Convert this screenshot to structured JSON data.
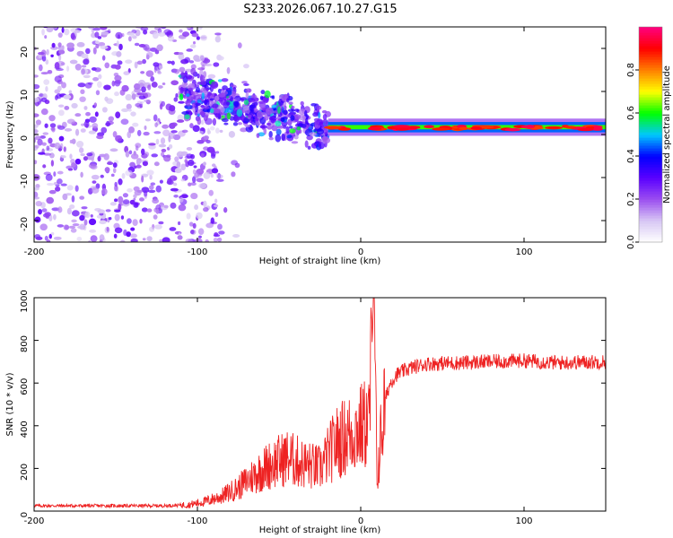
{
  "figure_title": "S233.2026.067.10.27.G15",
  "chart_data": [
    {
      "type": "heatmap",
      "title": "S233.2026.067.10.27.G15",
      "xlabel": "Height of straight line (km)",
      "ylabel": "Frequency (Hz)",
      "xlim": [
        -200,
        150
      ],
      "ylim": [
        -25,
        25
      ],
      "xticks": [
        -200,
        -100,
        0,
        100
      ],
      "yticks": [
        -20,
        -10,
        0,
        10,
        20
      ],
      "colorbar": {
        "label": "Normalized spectral amplitude",
        "range": [
          0,
          1
        ],
        "ticks": [
          0,
          0.2,
          0.4,
          0.6,
          0.8
        ],
        "tick_labels": [
          "0.0",
          "0.2",
          "0.4",
          "0.6",
          "0.8"
        ],
        "colormap": [
          "#ffffff",
          "#d8c8f4",
          "#9b4ef0",
          "#5a00ff",
          "#0000ff",
          "#00c8ff",
          "#00ff00",
          "#ffff00",
          "#ff8000",
          "#ff0000",
          "#ff0080"
        ]
      },
      "regions": [
        {
          "x_range": [
            -200,
            -110
          ],
          "description": "scattered noise",
          "freq_spread": 25,
          "typical_amplitude": 0.15
        },
        {
          "x_range": [
            -110,
            -20
          ],
          "description": "trend",
          "freq_center_start": 10,
          "freq_center_end": 1,
          "freq_spread": 6,
          "typical_amplitude": 0.3
        },
        {
          "x_range": [
            -20,
            150
          ],
          "description": "stable tone",
          "freq_center": 1.5,
          "freq_spread": 1.5,
          "typical_amplitude": 0.9
        }
      ]
    },
    {
      "type": "line",
      "title": "",
      "xlabel": "Height of straight line (km)",
      "ylabel": "SNR (10 * v/v)",
      "xlim": [
        -200,
        150
      ],
      "ylim": [
        0,
        1000
      ],
      "xticks": [
        -200,
        -100,
        0,
        100
      ],
      "yticks": [
        0,
        200,
        400,
        600,
        800,
        1000
      ],
      "series": [
        {
          "name": "SNR",
          "color": "#ee2222",
          "x": [
            -200,
            -150,
            -120,
            -105,
            -95,
            -85,
            -75,
            -65,
            -55,
            -45,
            -35,
            -25,
            -15,
            -5,
            0,
            5,
            8,
            10,
            12,
            15,
            18,
            22,
            30,
            40,
            60,
            80,
            100,
            120,
            150
          ],
          "values": [
            25,
            25,
            25,
            30,
            45,
            70,
            110,
            170,
            220,
            250,
            220,
            200,
            320,
            370,
            390,
            420,
            950,
            150,
            320,
            520,
            600,
            640,
            670,
            690,
            695,
            700,
            705,
            695,
            700
          ]
        }
      ]
    }
  ]
}
